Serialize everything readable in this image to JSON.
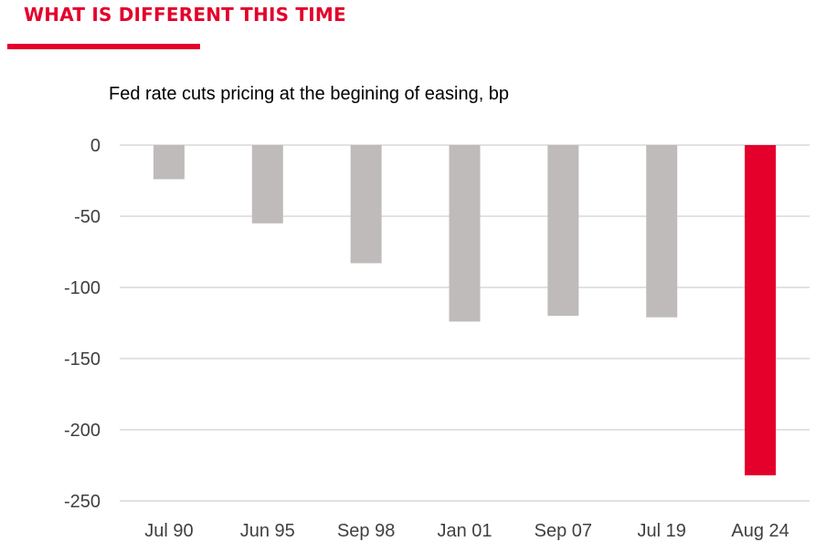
{
  "header": {
    "section_title": "WHAT IS DIFFERENT THIS TIME"
  },
  "colors": {
    "accent": "#e4002b",
    "bar_default": "#bfbbbb",
    "bar_highlight": "#e4002b",
    "gridline": "#d9d9d9",
    "axis_text": "#404040"
  },
  "chart_data": {
    "type": "bar",
    "title": "Fed rate cuts pricing at the begining of easing, bp",
    "xlabel": "",
    "ylabel": "",
    "categories": [
      "Jul 90",
      "Jun 95",
      "Sep 98",
      "Jan 01",
      "Sep 07",
      "Jul 19",
      "Aug 24"
    ],
    "values": [
      -24,
      -55,
      -83,
      -124,
      -120,
      -121,
      -232
    ],
    "highlight": "Aug 24",
    "ylim": [
      -250,
      0
    ],
    "yticks": [
      0,
      -50,
      -100,
      -150,
      -200,
      -250
    ],
    "grid": true,
    "legend": "none"
  }
}
